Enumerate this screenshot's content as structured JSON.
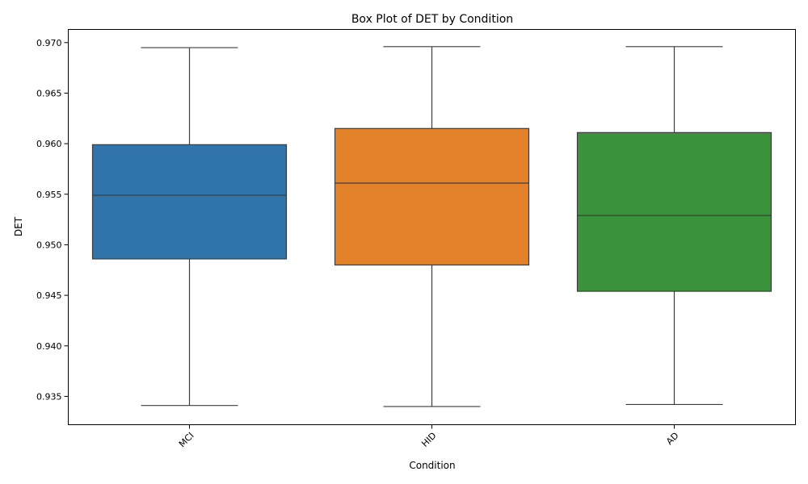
{
  "chart_data": {
    "type": "box",
    "title": "Box Plot of DET by Condition",
    "xlabel": "Condition",
    "ylabel": "DET",
    "ylim": [
      0.9322,
      0.9713
    ],
    "yticks": [
      0.935,
      0.94,
      0.945,
      0.95,
      0.955,
      0.96,
      0.965,
      0.97
    ],
    "ytick_labels": [
      "0.935",
      "0.940",
      "0.945",
      "0.950",
      "0.955",
      "0.960",
      "0.965",
      "0.970"
    ],
    "categories": [
      "MCI",
      "HID",
      "AD"
    ],
    "boxes": [
      {
        "category": "MCI",
        "whisker_low": 0.9341,
        "q1": 0.9486,
        "median": 0.9549,
        "q3": 0.9599,
        "whisker_high": 0.9695,
        "color": "#2f74ab"
      },
      {
        "category": "HID",
        "whisker_low": 0.934,
        "q1": 0.948,
        "median": 0.9561,
        "q3": 0.9615,
        "whisker_high": 0.9696,
        "color": "#e3812b"
      },
      {
        "category": "AD",
        "whisker_low": 0.9342,
        "q1": 0.9454,
        "median": 0.9529,
        "q3": 0.9611,
        "whisker_high": 0.9696,
        "color": "#3a923a"
      }
    ],
    "grid": false,
    "legend": "none"
  }
}
